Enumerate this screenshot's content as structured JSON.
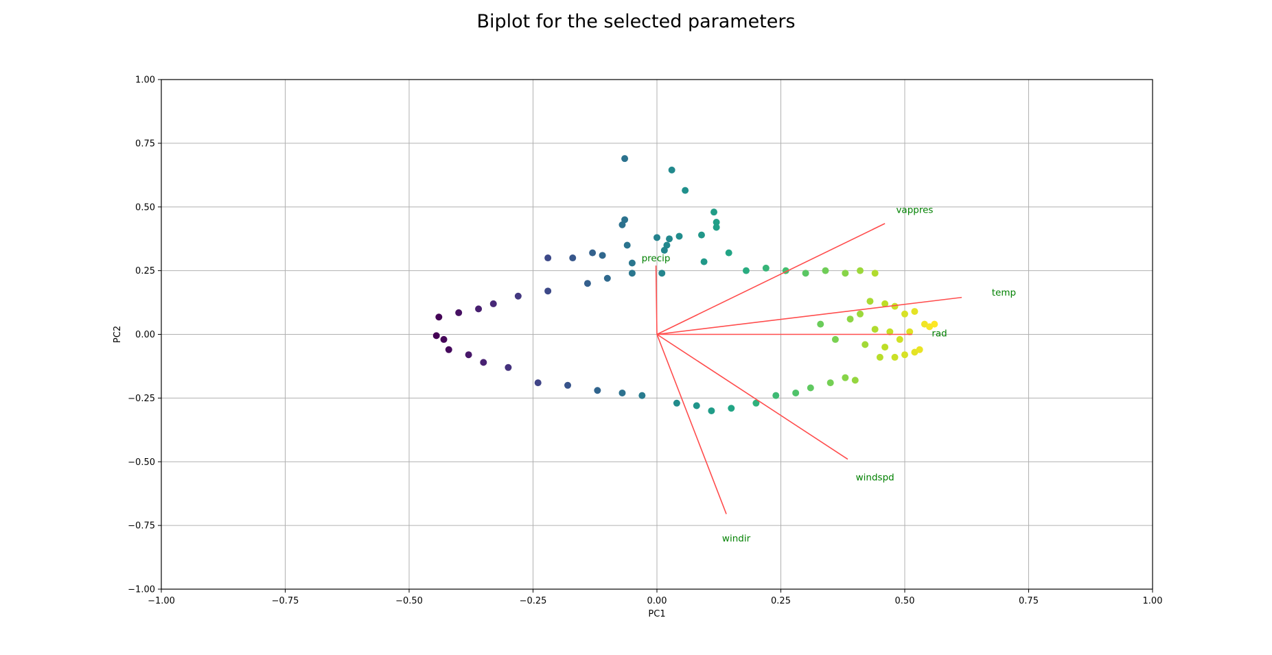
{
  "chart_data": {
    "type": "scatter",
    "title": "Biplot for the selected parameters",
    "xlabel": "PC1",
    "ylabel": "PC2",
    "xlim": [
      -1.0,
      1.0
    ],
    "ylim": [
      -1.0,
      1.0
    ],
    "xticks": [
      -1.0,
      -0.75,
      -0.5,
      -0.25,
      0.0,
      0.25,
      0.5,
      0.75,
      1.0
    ],
    "yticks": [
      -1.0,
      -0.75,
      -0.5,
      -0.25,
      0.0,
      0.25,
      0.5,
      0.75,
      1.0
    ],
    "xtick_labels": [
      "−1.00",
      "−0.75",
      "−0.50",
      "−0.25",
      "0.00",
      "0.25",
      "0.50",
      "0.75",
      "1.00"
    ],
    "ytick_labels": [
      "−1.00",
      "−0.75",
      "−0.50",
      "−0.25",
      "0.00",
      "0.25",
      "0.50",
      "0.75",
      "1.00"
    ],
    "grid": true,
    "colormap": "viridis",
    "loading_color": "#ff4c4c",
    "loading_label_color": "#008000",
    "loadings": [
      {
        "name": "precip",
        "x": -0.002,
        "y": 0.27,
        "label_x": -0.002,
        "label_y": 0.3
      },
      {
        "name": "vappres",
        "x": 0.46,
        "y": 0.435,
        "label_x": 0.52,
        "label_y": 0.49
      },
      {
        "name": "temp",
        "x": 0.615,
        "y": 0.145,
        "label_x": 0.7,
        "label_y": 0.165
      },
      {
        "name": "rad",
        "x": 0.515,
        "y": 0.0,
        "label_x": 0.57,
        "label_y": 0.005
      },
      {
        "name": "windspd",
        "x": 0.385,
        "y": -0.49,
        "label_x": 0.44,
        "label_y": -0.56
      },
      {
        "name": "windir",
        "x": 0.14,
        "y": -0.705,
        "label_x": 0.16,
        "label_y": -0.8
      }
    ],
    "points": [
      [
        -0.065,
        0.69
      ],
      [
        0.03,
        0.645
      ],
      [
        0.057,
        0.565
      ],
      [
        -0.065,
        0.45
      ],
      [
        0.115,
        0.48
      ],
      [
        0.0,
        0.38
      ],
      [
        0.025,
        0.375
      ],
      [
        0.12,
        0.44
      ],
      [
        0.12,
        0.42
      ],
      [
        -0.07,
        0.43
      ],
      [
        0.09,
        0.39
      ],
      [
        0.045,
        0.385
      ],
      [
        0.02,
        0.35
      ],
      [
        0.015,
        0.33
      ],
      [
        -0.06,
        0.35
      ],
      [
        0.145,
        0.32
      ],
      [
        0.095,
        0.285
      ],
      [
        -0.13,
        0.32
      ],
      [
        -0.11,
        0.31
      ],
      [
        -0.22,
        0.3
      ],
      [
        -0.17,
        0.3
      ],
      [
        -0.05,
        0.28
      ],
      [
        -0.44,
        0.068
      ],
      [
        -0.445,
        -0.005
      ],
      [
        -0.43,
        -0.02
      ],
      [
        -0.42,
        -0.06
      ],
      [
        -0.4,
        0.085
      ],
      [
        -0.38,
        -0.08
      ],
      [
        -0.36,
        0.1
      ],
      [
        -0.35,
        -0.11
      ],
      [
        -0.33,
        0.12
      ],
      [
        -0.3,
        -0.13
      ],
      [
        -0.28,
        0.15
      ],
      [
        -0.24,
        -0.19
      ],
      [
        -0.22,
        0.17
      ],
      [
        -0.18,
        -0.2
      ],
      [
        -0.14,
        0.2
      ],
      [
        -0.12,
        -0.22
      ],
      [
        -0.1,
        0.22
      ],
      [
        -0.07,
        -0.23
      ],
      [
        -0.05,
        0.24
      ],
      [
        -0.03,
        -0.24
      ],
      [
        0.01,
        0.24
      ],
      [
        0.04,
        -0.27
      ],
      [
        0.08,
        -0.28
      ],
      [
        0.11,
        -0.3
      ],
      [
        0.15,
        -0.29
      ],
      [
        0.18,
        0.25
      ],
      [
        0.22,
        0.26
      ],
      [
        0.26,
        0.25
      ],
      [
        0.3,
        0.24
      ],
      [
        0.34,
        0.25
      ],
      [
        0.38,
        0.24
      ],
      [
        0.41,
        0.25
      ],
      [
        0.44,
        0.24
      ],
      [
        0.2,
        -0.27
      ],
      [
        0.24,
        -0.24
      ],
      [
        0.28,
        -0.23
      ],
      [
        0.31,
        -0.21
      ],
      [
        0.35,
        -0.19
      ],
      [
        0.38,
        -0.17
      ],
      [
        0.4,
        -0.18
      ],
      [
        0.45,
        -0.09
      ],
      [
        0.48,
        -0.09
      ],
      [
        0.5,
        -0.08
      ],
      [
        0.52,
        -0.07
      ],
      [
        0.53,
        -0.06
      ],
      [
        0.54,
        0.04
      ],
      [
        0.55,
        0.03
      ],
      [
        0.56,
        0.04
      ],
      [
        0.5,
        0.08
      ],
      [
        0.52,
        0.09
      ],
      [
        0.48,
        0.11
      ],
      [
        0.46,
        0.12
      ],
      [
        0.43,
        0.13
      ],
      [
        0.33,
        0.04
      ],
      [
        0.36,
        -0.02
      ],
      [
        0.39,
        0.06
      ],
      [
        0.42,
        -0.04
      ],
      [
        0.44,
        0.02
      ],
      [
        0.47,
        0.01
      ],
      [
        0.49,
        -0.02
      ],
      [
        0.51,
        0.01
      ],
      [
        0.46,
        -0.05
      ],
      [
        0.41,
        0.08
      ]
    ]
  }
}
